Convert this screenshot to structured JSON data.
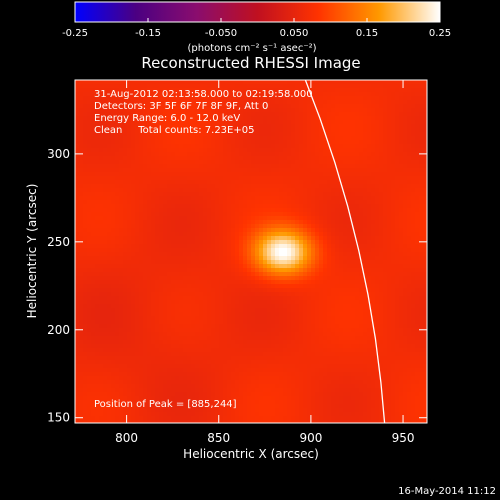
{
  "chart_data": {
    "type": "heatmap",
    "title": "Reconstructed RHESSI Image",
    "xlabel": "Heliocentric X (arcsec)",
    "ylabel": "Heliocentric Y (arcsec)",
    "xlim": [
      772,
      963
    ],
    "ylim": [
      147,
      342
    ],
    "x_ticks": [
      800,
      850,
      900,
      950
    ],
    "y_ticks": [
      150,
      200,
      250,
      300
    ],
    "colorbar": {
      "range": [
        -0.25,
        0.25
      ],
      "tick_labels": [
        "-0.25",
        "-0.15",
        "-0.050",
        "0.050",
        "0.15",
        "0.25"
      ],
      "tick_values": [
        -0.25,
        -0.15,
        -0.05,
        0.05,
        0.15,
        0.25
      ],
      "label": "(photons cm⁻² s⁻¹ asec⁻²)",
      "colormap": [
        "#0000ff",
        "#4b0082",
        "#8a0d6e",
        "#c01020",
        "#ff3300",
        "#ff9900",
        "#ffffff"
      ]
    },
    "source": {
      "peak": [
        885,
        244
      ],
      "peak_value": 0.25,
      "sigma_x_arcsec": 11,
      "sigma_y_arcsec": 9,
      "background_value": 0.07
    },
    "limb_curve": [
      [
        897,
        342
      ],
      [
        905,
        320
      ],
      [
        913,
        295
      ],
      [
        920,
        270
      ],
      [
        926,
        245
      ],
      [
        931,
        220
      ],
      [
        935,
        195
      ],
      [
        938,
        170
      ],
      [
        940,
        147
      ]
    ],
    "annotations": {
      "time_range": "31-Aug-2012 02:13:58.000 to 02:19:58.000",
      "detectors": "Detectors: 3F 5F 6F 7F 8F 9F, Att 0",
      "energy": "Energy Range: 6.0 - 12.0 keV",
      "clean": "Clean     Total counts: 7.23E+05",
      "peak_position": "Position of Peak = [885,244]"
    },
    "date_stamp": "16-May-2014 11:12"
  }
}
